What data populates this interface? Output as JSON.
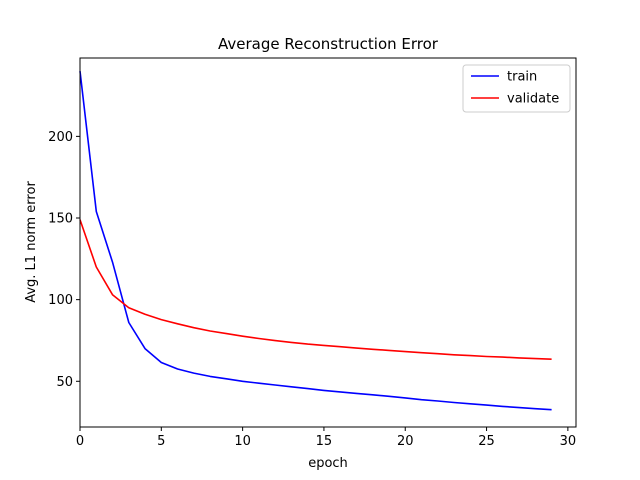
{
  "chart_data": {
    "type": "line",
    "title": "Average Reconstruction Error",
    "xlabel": "epoch",
    "ylabel": "Avg. L1 norm error",
    "xlim": [
      0,
      30.5
    ],
    "ylim": [
      22,
      248
    ],
    "xticks": [
      0,
      5,
      10,
      15,
      20,
      25,
      30
    ],
    "yticks": [
      50,
      100,
      150,
      200
    ],
    "grid": false,
    "legend": "top-right",
    "x": [
      0,
      1,
      2,
      3,
      4,
      5,
      6,
      7,
      8,
      9,
      10,
      11,
      12,
      13,
      14,
      15,
      16,
      17,
      18,
      19,
      20,
      21,
      22,
      23,
      24,
      25,
      26,
      27,
      28,
      29
    ],
    "series": [
      {
        "name": "train",
        "color": "#0000ff",
        "values": [
          240,
          154,
          123,
          86,
          70,
          61.5,
          57.5,
          55,
          53,
          51.5,
          50,
          48.8,
          47.7,
          46.6,
          45.5,
          44.4,
          43.5,
          42.6,
          41.7,
          40.8,
          39.8,
          38.7,
          37.9,
          37,
          36.2,
          35.4,
          34.6,
          33.9,
          33.2,
          32.6
        ]
      },
      {
        "name": "validate",
        "color": "#ff0000",
        "values": [
          149,
          120,
          103,
          95,
          91,
          87.8,
          85.2,
          82.8,
          80.8,
          79.2,
          77.6,
          76.2,
          74.9,
          73.8,
          72.8,
          72,
          71.2,
          70.3,
          69.6,
          68.9,
          68.2,
          67.5,
          66.9,
          66.2,
          65.7,
          65.2,
          64.8,
          64.3,
          63.9,
          63.5
        ]
      }
    ]
  }
}
